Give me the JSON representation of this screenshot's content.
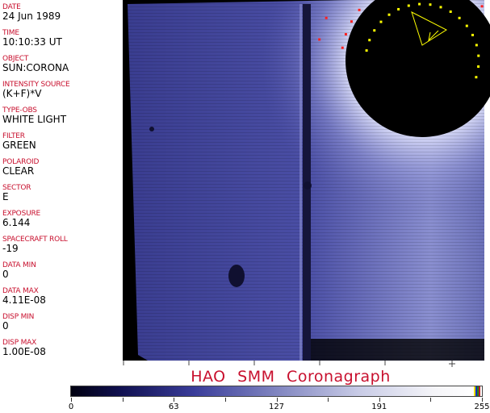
{
  "header": [
    {
      "label": "DATE",
      "value": "24 Jun 1989"
    },
    {
      "label": "TIME",
      "value": "10:10:33 UT"
    },
    {
      "label": "OBJECT",
      "value": "SUN:CORONA"
    },
    {
      "label": "INTENSITY SOURCE",
      "value": "(K+F)*V"
    },
    {
      "label": "TYPE-OBS",
      "value": "WHITE LIGHT"
    },
    {
      "label": "FILTER",
      "value": "GREEN"
    },
    {
      "label": "POLAROID",
      "value": "CLEAR"
    },
    {
      "label": "SECTOR",
      "value": "E"
    },
    {
      "label": "EXPOSURE",
      "value": "6.144"
    },
    {
      "label": "SPACECRAFT ROLL",
      "value": "-19"
    },
    {
      "label": "DATA MIN",
      "value": "0"
    },
    {
      "label": "DATA MAX",
      "value": "4.11E-08"
    },
    {
      "label": "DISP MIN",
      "value": "0"
    },
    {
      "label": "DISP MAX",
      "value": "1.00E-08"
    }
  ],
  "title": "HAO  SMM Coronagraph",
  "colorbar": {
    "ticks": [
      "0",
      "63",
      "127",
      "191",
      "255"
    ],
    "colormap": "dark blue to white",
    "end_colors": [
      "#f0e000",
      "#1030c0",
      "#208020",
      "#c02020"
    ]
  },
  "colors": {
    "label": "#c8102e",
    "overlay_red": "#ff2020",
    "overlay_yellow": "#ffff00"
  }
}
